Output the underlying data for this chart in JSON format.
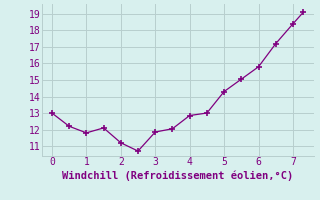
{
  "x": [
    0,
    0.5,
    1.0,
    1.5,
    2.0,
    2.5,
    3.0,
    3.5,
    4.0,
    4.5,
    5.0,
    5.5,
    6.0,
    6.5,
    7.0,
    7.3
  ],
  "y": [
    13.0,
    12.2,
    11.8,
    12.1,
    11.2,
    10.7,
    11.85,
    12.05,
    12.85,
    13.0,
    14.3,
    15.05,
    15.8,
    17.2,
    18.4,
    19.1
  ],
  "line_color": "#800080",
  "marker_color": "#800080",
  "bg_color": "#d8f0ee",
  "grid_color": "#b8cece",
  "xlabel": "Windchill (Refroidissement éolien,°C)",
  "xlabel_color": "#800080",
  "xticks": [
    0,
    1,
    2,
    3,
    4,
    5,
    6,
    7
  ],
  "yticks": [
    11,
    12,
    13,
    14,
    15,
    16,
    17,
    18,
    19
  ],
  "xlim": [
    -0.3,
    7.6
  ],
  "ylim": [
    10.4,
    19.6
  ],
  "tick_color": "#800080",
  "tick_labelsize": 7,
  "xlabel_fontsize": 7.5
}
